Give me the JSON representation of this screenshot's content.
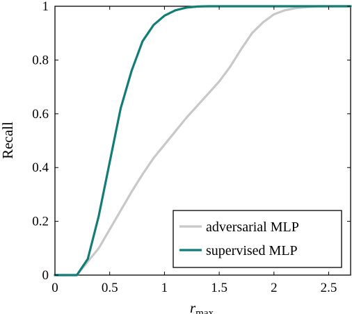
{
  "chart_data": {
    "type": "line",
    "xlabel": "r",
    "xlabel_sub": "max",
    "ylabel": "Recall",
    "xlim": [
      0,
      2.7
    ],
    "ylim": [
      0,
      1
    ],
    "xticks": [
      0,
      0.5,
      1,
      1.5,
      2,
      2.5
    ],
    "xtick_labels": [
      "0",
      "0.5",
      "1",
      "1.5",
      "2",
      "2.5"
    ],
    "yticks": [
      0,
      0.2,
      0.4,
      0.6,
      0.8,
      1
    ],
    "ytick_labels": [
      "0",
      "0.2",
      "0.4",
      "0.6",
      "0.8",
      "1"
    ],
    "grid": false,
    "legend_position": "bottom-right",
    "series": [
      {
        "name": "adversarial MLP",
        "color": "#c8c8c8",
        "x": [
          0,
          0.1,
          0.2,
          0.3,
          0.4,
          0.5,
          0.6,
          0.7,
          0.8,
          0.9,
          1.0,
          1.1,
          1.2,
          1.3,
          1.4,
          1.5,
          1.6,
          1.7,
          1.8,
          1.9,
          2.0,
          2.1,
          2.2,
          2.3,
          2.4,
          2.5,
          2.6,
          2.7
        ],
        "y": [
          0,
          0,
          0,
          0.05,
          0.1,
          0.17,
          0.24,
          0.31,
          0.375,
          0.435,
          0.485,
          0.535,
          0.585,
          0.63,
          0.675,
          0.72,
          0.775,
          0.84,
          0.9,
          0.94,
          0.97,
          0.985,
          0.993,
          0.997,
          1.0,
          1.0,
          1.0,
          1.0
        ]
      },
      {
        "name": "supervised MLP",
        "color": "#127c77",
        "x": [
          0,
          0.1,
          0.2,
          0.3,
          0.4,
          0.5,
          0.6,
          0.7,
          0.8,
          0.9,
          1.0,
          1.1,
          1.2,
          1.3,
          1.4,
          1.5,
          1.6,
          1.7,
          1.8,
          1.9,
          2.0,
          2.1,
          2.2,
          2.3,
          2.4,
          2.5,
          2.6,
          2.7
        ],
        "y": [
          0,
          0,
          0,
          0.06,
          0.22,
          0.42,
          0.62,
          0.76,
          0.87,
          0.93,
          0.965,
          0.985,
          0.995,
          0.999,
          1.0,
          1.0,
          1.0,
          1.0,
          1.0,
          1.0,
          1.0,
          1.0,
          1.0,
          1.0,
          1.0,
          1.0,
          1.0,
          1.0
        ]
      }
    ]
  }
}
